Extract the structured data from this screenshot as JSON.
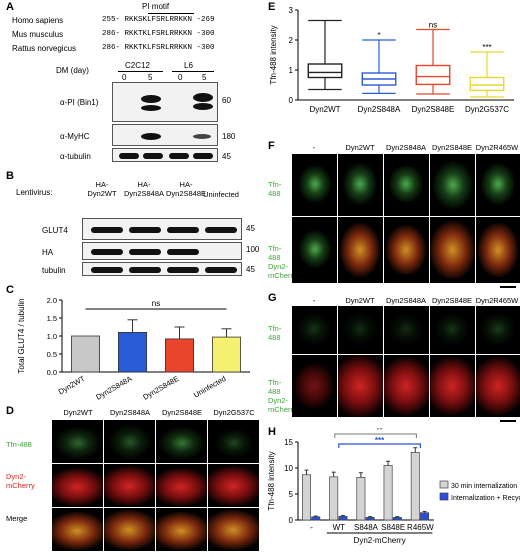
{
  "panels": {
    "A": "A",
    "B": "B",
    "C": "C",
    "D": "D",
    "E": "E",
    "F": "F",
    "G": "G",
    "H": "H"
  },
  "panelA": {
    "motif_label": "PI motif",
    "species": [
      {
        "name": "Homo sapiens",
        "seq": "255- RKKSKLFSRLRRKKN -269"
      },
      {
        "name": "Mus musculus",
        "seq": "286- RKKTKLFSRLRRKKN -300"
      },
      {
        "name": "Rattus norvegicus",
        "seq": "286- RKKTKLFSRLRRKKN -300"
      }
    ],
    "dm_label": "DM (day)",
    "cell_lines": [
      "C2C12",
      "L6"
    ],
    "days": [
      "0",
      "5",
      "0",
      "5"
    ],
    "blots": [
      {
        "label": "α-PI (Bin1)",
        "mw": "60"
      },
      {
        "label": "α-MyHC",
        "mw": "180"
      },
      {
        "label": "α-tubulin",
        "mw": "45"
      }
    ]
  },
  "panelB": {
    "lentivirus_label": "Lentivirus:",
    "columns": [
      "HA-Dyn2WT",
      "HA-Dyn2S848A",
      "HA-Dyn2S848E",
      "Uninfected"
    ],
    "blots": [
      {
        "label": "GLUT4",
        "mw": "45"
      },
      {
        "label": "HA",
        "mw": "100"
      },
      {
        "label": "tubulin",
        "mw": "45"
      }
    ]
  },
  "chart_data": [
    {
      "type": "bar",
      "panel": "C",
      "ylabel": "Total GLUT4 / tubulin",
      "categories": [
        "Dyn2WT",
        "Dyn2S848A",
        "Dyn2S848E",
        "Uninfected"
      ],
      "values": [
        1.0,
        1.1,
        0.92,
        0.97
      ],
      "errors": [
        0.0,
        0.35,
        0.33,
        0.23
      ],
      "colors": [
        "#c8c8c8",
        "#2a5bd7",
        "#e8452c",
        "#f4f070"
      ],
      "ylim": [
        0,
        2.0
      ],
      "yticks": [
        "0.0",
        "0.5",
        "1.0",
        "1.5",
        "2.0"
      ],
      "annotation": "ns"
    },
    {
      "type": "box",
      "panel": "E",
      "ylabel": "Tfn-488 intensity",
      "categories": [
        "Dyn2WT",
        "Dyn2S848A",
        "Dyn2S848E",
        "Dyn2G537C"
      ],
      "colors": [
        "#222222",
        "#2a5bd7",
        "#e8452c",
        "#e8d830"
      ],
      "ylim": [
        0,
        3
      ],
      "yticks": [
        "0",
        "1",
        "2",
        "3"
      ],
      "boxes": [
        {
          "min": 0.35,
          "q1": 0.75,
          "median": 0.92,
          "q3": 1.2,
          "max": 2.65
        },
        {
          "min": 0.22,
          "q1": 0.5,
          "median": 0.7,
          "q3": 0.9,
          "max": 2.0
        },
        {
          "min": 0.2,
          "q1": 0.52,
          "median": 0.78,
          "q3": 1.15,
          "max": 2.35
        },
        {
          "min": 0.1,
          "q1": 0.32,
          "median": 0.5,
          "q3": 0.75,
          "max": 1.6
        }
      ],
      "annotations": [
        "",
        "*",
        "ns",
        "***"
      ]
    },
    {
      "type": "bar",
      "panel": "H",
      "ylabel": "Tfn-488 intensity",
      "categories": [
        "-",
        "WT",
        "S848A",
        "S848E",
        "R465W"
      ],
      "group_label": "Dyn2-mCherry",
      "series": [
        {
          "name": "30 min internalization",
          "values": [
            8.7,
            8.3,
            8.2,
            10.5,
            13.0
          ],
          "errors": [
            0.9,
            0.9,
            0.9,
            0.8,
            0.9
          ],
          "color": "#d4d4d4"
        },
        {
          "name": "Internalization + Recycling",
          "values": [
            0.6,
            0.7,
            0.5,
            0.5,
            1.4
          ],
          "errors": [
            0.15,
            0.15,
            0.15,
            0.15,
            0.25
          ],
          "color": "#2a4fd8"
        }
      ],
      "ylim": [
        0,
        15
      ],
      "yticks": [
        "0",
        "5",
        "10",
        "15"
      ],
      "sig": [
        {
          "label": "**",
          "color": "#777777"
        },
        {
          "label": "***",
          "color": "#2a4fd8"
        }
      ]
    }
  ],
  "panelD": {
    "columns": [
      "Dyn2WT",
      "Dyn2S848A",
      "Dyn2S848E",
      "Dyn2G537C"
    ],
    "rows": [
      "Tfn-488",
      "Dyn2-mCherry",
      "Merge"
    ]
  },
  "panelF": {
    "columns": [
      "-",
      "Dyn2WT",
      "Dyn2S848A",
      "Dyn2S848E",
      "Dyn2R465W"
    ],
    "rows": [
      "Tfn-488",
      "Tfn-488 Dyn2-mCherry"
    ]
  },
  "panelG": {
    "columns": [
      "-",
      "Dyn2WT",
      "Dyn2S848A",
      "Dyn2S848E",
      "Dyn2R465W"
    ],
    "rows": [
      "Tfn-488",
      "Tfn-488 Dyn2-mCherry"
    ]
  }
}
